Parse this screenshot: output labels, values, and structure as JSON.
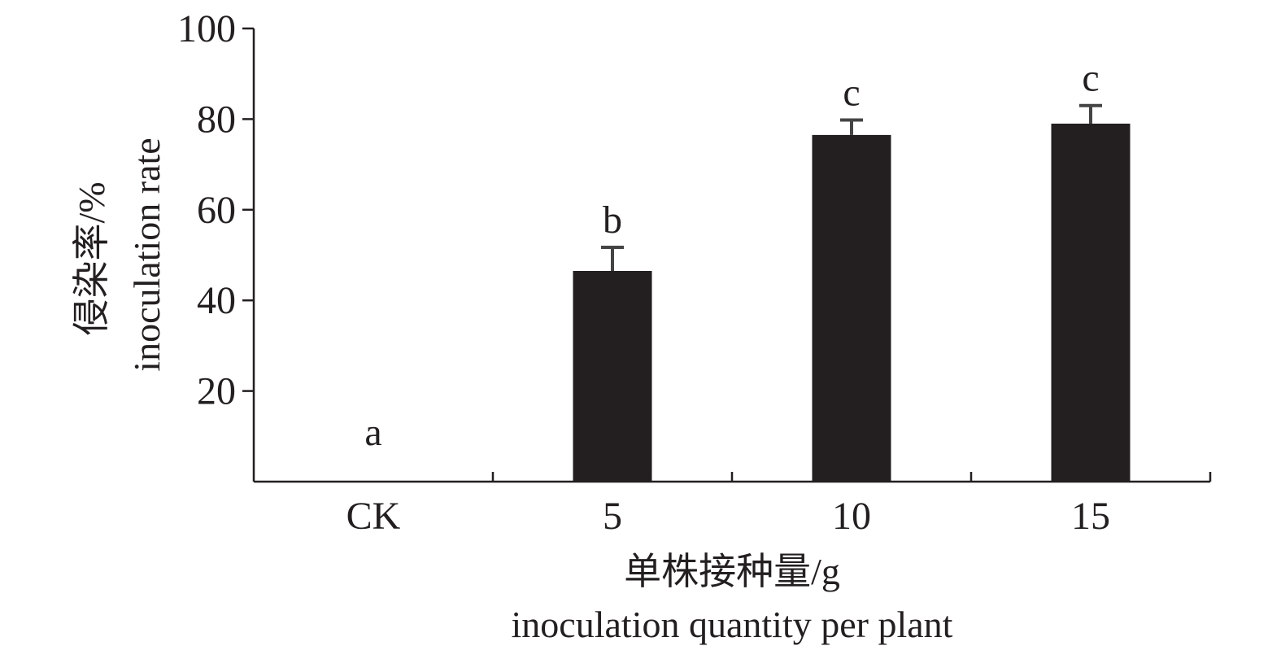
{
  "chart_data": {
    "type": "bar",
    "categories": [
      "CK",
      "5",
      "10",
      "15"
    ],
    "values": [
      0,
      46.5,
      76.5,
      79
    ],
    "errors": [
      0,
      5.2,
      3.3,
      4.0
    ],
    "significance_letters": [
      "a",
      "b",
      "c",
      "c"
    ],
    "ylim": [
      0,
      100
    ],
    "yticks": [
      20,
      40,
      60,
      80,
      100
    ],
    "ylabel_cn": "侵染率/%",
    "ylabel_en": "inoculation rate",
    "xlabel_cn": "单株接种量/g",
    "xlabel_en": "inoculation quantity per plant",
    "grid": false,
    "bar_color": "#231f20"
  }
}
